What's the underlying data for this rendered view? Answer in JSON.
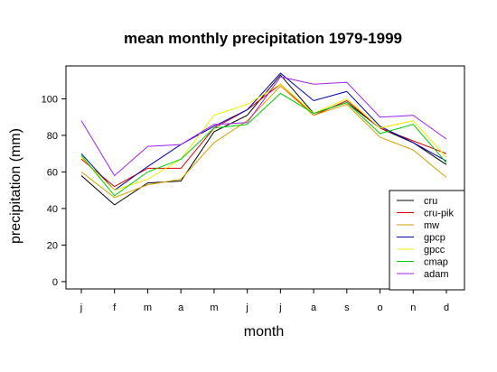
{
  "chart_data": {
    "type": "line",
    "title": "mean monthly precipitation 1979-1999",
    "xlabel": "month",
    "ylabel": "precipitation (mm)",
    "categories": [
      "j",
      "f",
      "m",
      "a",
      "m",
      "j",
      "j",
      "a",
      "s",
      "o",
      "n",
      "d"
    ],
    "yticks": [
      0,
      20,
      40,
      60,
      80,
      100
    ],
    "ylim": [
      -4,
      118
    ],
    "grid": false,
    "legend_position": "bottom-right",
    "series": [
      {
        "name": "cru",
        "color": "#000000",
        "values": [
          58,
          42,
          54,
          55,
          82,
          91,
          113,
          92,
          98,
          84,
          76,
          64
        ]
      },
      {
        "name": "cru-pik",
        "color": "#dd0000",
        "values": [
          67,
          52,
          62,
          62,
          84,
          94,
          108,
          91,
          99,
          84,
          77,
          70
        ]
      },
      {
        "name": "mw",
        "color": "#d4a000",
        "values": [
          60,
          46,
          53,
          56,
          76,
          88,
          107,
          91,
          97,
          79,
          72,
          57
        ]
      },
      {
        "name": "gpcp",
        "color": "#0000aa",
        "values": [
          70,
          50,
          63,
          75,
          85,
          94,
          114,
          99,
          104,
          85,
          76,
          66
        ]
      },
      {
        "name": "gpcc",
        "color": "#eeee00",
        "values": [
          68,
          50,
          56,
          67,
          91,
          97,
          108,
          92,
          100,
          84,
          88,
          68
        ]
      },
      {
        "name": "cmap",
        "color": "#00cc00",
        "values": [
          69,
          47,
          60,
          67,
          84,
          86,
          103,
          92,
          98,
          81,
          86,
          65
        ]
      },
      {
        "name": "adam",
        "color": "#a020f0",
        "values": [
          88,
          58,
          74,
          75,
          86,
          87,
          112,
          108,
          109,
          90,
          91,
          78
        ]
      }
    ]
  }
}
